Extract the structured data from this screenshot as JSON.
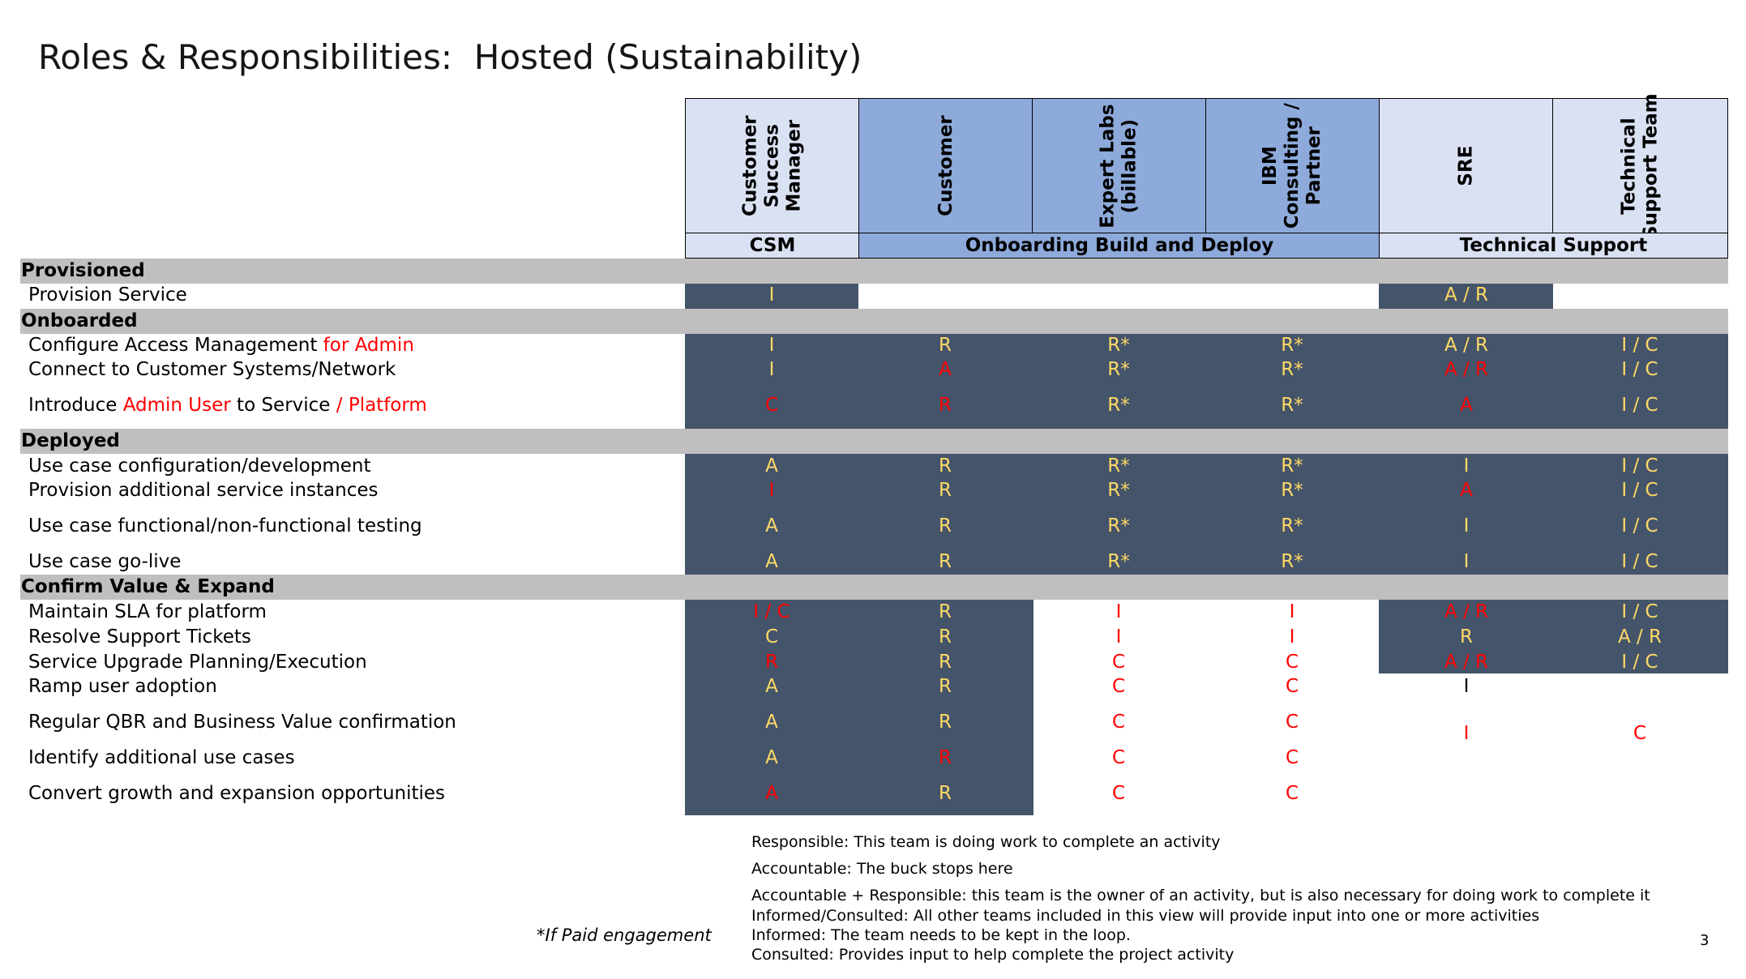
{
  "title": "Roles & Responsibilities:  Hosted (Sustainability)",
  "roles": [
    {
      "id": "csm",
      "label": "Customer\nSuccess\nManager"
    },
    {
      "id": "customer",
      "label": "Customer"
    },
    {
      "id": "expert_labs",
      "label": "Expert Labs\n(billable)"
    },
    {
      "id": "ibm_consulting",
      "label": "IBM\nConsulting /\nPartner"
    },
    {
      "id": "sre",
      "label": "SRE"
    },
    {
      "id": "technical_support",
      "label": "Technical\nSupport Team"
    }
  ],
  "phases": {
    "csm": "CSM",
    "onboarding": "Onboarding Build and Deploy",
    "technical_support": "Technical Support"
  },
  "sections": {
    "provisioned": "Provisioned",
    "onboarded": "Onboarded",
    "deployed": "Deployed",
    "confirm_value": "Confirm Value & Expand"
  },
  "rows": {
    "provision_service": {
      "label": "Provision Service",
      "cells": [
        {
          "v": "I",
          "c": "y"
        },
        {
          "v": "",
          "c": "k"
        },
        {
          "v": "",
          "c": "k"
        },
        {
          "v": "",
          "c": "k"
        },
        {
          "v": "A / R",
          "c": "y"
        },
        {
          "v": "",
          "c": "k"
        }
      ]
    },
    "configure_access": {
      "label_parts": [
        "Configure Access Management ",
        "for Admin"
      ],
      "cells": [
        {
          "v": "I",
          "c": "y"
        },
        {
          "v": "R",
          "c": "y"
        },
        {
          "v": "R*",
          "c": "y"
        },
        {
          "v": "R*",
          "c": "y"
        },
        {
          "v": "A / R",
          "c": "y"
        },
        {
          "v": "I / C",
          "c": "y"
        }
      ]
    },
    "connect_systems": {
      "label": "Connect to Customer Systems/Network",
      "cells": [
        {
          "v": "I",
          "c": "y"
        },
        {
          "v": "A",
          "c": "r"
        },
        {
          "v": "R*",
          "c": "y"
        },
        {
          "v": "R*",
          "c": "y"
        },
        {
          "v": "A / R",
          "c": "r"
        },
        {
          "v": "I / C",
          "c": "y"
        }
      ]
    },
    "introduce_admin": {
      "label_parts": [
        "Introduce ",
        "Admin User",
        " to Service ",
        "/ Platform"
      ],
      "cells": [
        {
          "v": "C",
          "c": "r"
        },
        {
          "v": "R",
          "c": "r"
        },
        {
          "v": "R*",
          "c": "y"
        },
        {
          "v": "R*",
          "c": "y"
        },
        {
          "v": "A",
          "c": "r"
        },
        {
          "v": "I / C",
          "c": "y"
        }
      ]
    },
    "use_case_config": {
      "label": "Use case configuration/development",
      "cells": [
        {
          "v": "A",
          "c": "y"
        },
        {
          "v": "R",
          "c": "y"
        },
        {
          "v": "R*",
          "c": "y"
        },
        {
          "v": "R*",
          "c": "y"
        },
        {
          "v": "I",
          "c": "y"
        },
        {
          "v": "I / C",
          "c": "y"
        }
      ]
    },
    "provision_additional": {
      "label": "Provision additional service instances",
      "cells": [
        {
          "v": "I",
          "c": "r"
        },
        {
          "v": "R",
          "c": "y"
        },
        {
          "v": "R*",
          "c": "y"
        },
        {
          "v": "R*",
          "c": "y"
        },
        {
          "v": "A",
          "c": "r"
        },
        {
          "v": "I / C",
          "c": "y"
        }
      ]
    },
    "use_case_testing": {
      "label": "Use case functional/non-functional testing",
      "cells": [
        {
          "v": "A",
          "c": "y"
        },
        {
          "v": "R",
          "c": "y"
        },
        {
          "v": "R*",
          "c": "y"
        },
        {
          "v": "R*",
          "c": "y"
        },
        {
          "v": "I",
          "c": "y"
        },
        {
          "v": "I / C",
          "c": "y"
        }
      ]
    },
    "use_case_golive": {
      "label": "Use case go-live",
      "cells": [
        {
          "v": "A",
          "c": "y"
        },
        {
          "v": "R",
          "c": "y"
        },
        {
          "v": "R*",
          "c": "y"
        },
        {
          "v": "R*",
          "c": "y"
        },
        {
          "v": "I",
          "c": "y"
        },
        {
          "v": "I / C",
          "c": "y"
        }
      ]
    },
    "maintain_sla": {
      "label": "Maintain SLA for platform",
      "cells": [
        {
          "v": "I / C",
          "c": "r"
        },
        {
          "v": "R",
          "c": "y"
        },
        {
          "v": "I",
          "c": "r"
        },
        {
          "v": "I",
          "c": "r"
        },
        {
          "v": "A / R",
          "c": "r"
        },
        {
          "v": "I / C",
          "c": "y"
        }
      ]
    },
    "resolve_tickets": {
      "label": "Resolve Support Tickets",
      "cells": [
        {
          "v": "C",
          "c": "y"
        },
        {
          "v": "R",
          "c": "y"
        },
        {
          "v": "I",
          "c": "r"
        },
        {
          "v": "I",
          "c": "r"
        },
        {
          "v": "R",
          "c": "y"
        },
        {
          "v": "A / R",
          "c": "y"
        }
      ]
    },
    "service_upgrade": {
      "label": "Service Upgrade Planning/Execution",
      "cells": [
        {
          "v": "R",
          "c": "r"
        },
        {
          "v": "R",
          "c": "y"
        },
        {
          "v": "C",
          "c": "r"
        },
        {
          "v": "C",
          "c": "r"
        },
        {
          "v": "A / R",
          "c": "r"
        },
        {
          "v": "I / C",
          "c": "y"
        }
      ]
    },
    "ramp_adoption": {
      "label": "Ramp user adoption",
      "cells": [
        {
          "v": "A",
          "c": "y"
        },
        {
          "v": "R",
          "c": "y"
        },
        {
          "v": "C",
          "c": "r"
        },
        {
          "v": "C",
          "c": "r"
        },
        {
          "v": "I",
          "c": "k"
        },
        {
          "v": "",
          "c": "k"
        }
      ]
    },
    "regular_qbr": {
      "label": "Regular QBR and Business Value confirmation",
      "cells": [
        {
          "v": "A",
          "c": "y"
        },
        {
          "v": "R",
          "c": "y"
        },
        {
          "v": "C",
          "c": "r"
        },
        {
          "v": "C",
          "c": "r"
        },
        {
          "v": "",
          "c": "k"
        },
        {
          "v": "",
          "c": "k"
        }
      ]
    },
    "identify_use_cases": {
      "label": "Identify additional use cases",
      "cells": [
        {
          "v": "A",
          "c": "y"
        },
        {
          "v": "R",
          "c": "r"
        },
        {
          "v": "C",
          "c": "r"
        },
        {
          "v": "C",
          "c": "r"
        },
        {
          "v": "",
          "c": "k"
        },
        {
          "v": "",
          "c": "k"
        }
      ]
    },
    "convert_growth": {
      "label": "Convert growth and expansion opportunities",
      "cells": [
        {
          "v": "A",
          "c": "r"
        },
        {
          "v": "R",
          "c": "y"
        },
        {
          "v": "C",
          "c": "r"
        },
        {
          "v": "C",
          "c": "r"
        },
        {
          "v": "",
          "c": "k"
        },
        {
          "v": "",
          "c": "k"
        }
      ]
    }
  },
  "merged_cells": {
    "sre_i": "I",
    "tech_c": "C"
  },
  "legend": [
    "Responsible: This team is doing work to complete an activity",
    "Accountable: The buck stops here",
    "Accountable + Responsible: this team is the owner of an activity, but is also necessary for doing work to complete it",
    "Informed/Consulted: All other teams included in this view will provide input into one or more activities",
    "Informed: The team needs to be kept in the loop.",
    "Consulted: Provides input to help complete the project activity"
  ],
  "footnote": "*If Paid engagement",
  "page_number": "3",
  "colors": {
    "header_light": "#dae1f2",
    "header_blue": "#8eaadb",
    "section_band": "#bfbfbf",
    "dark_cell": "#44546a",
    "yellow_text": "#ffd966",
    "red_text": "#ff0000"
  }
}
